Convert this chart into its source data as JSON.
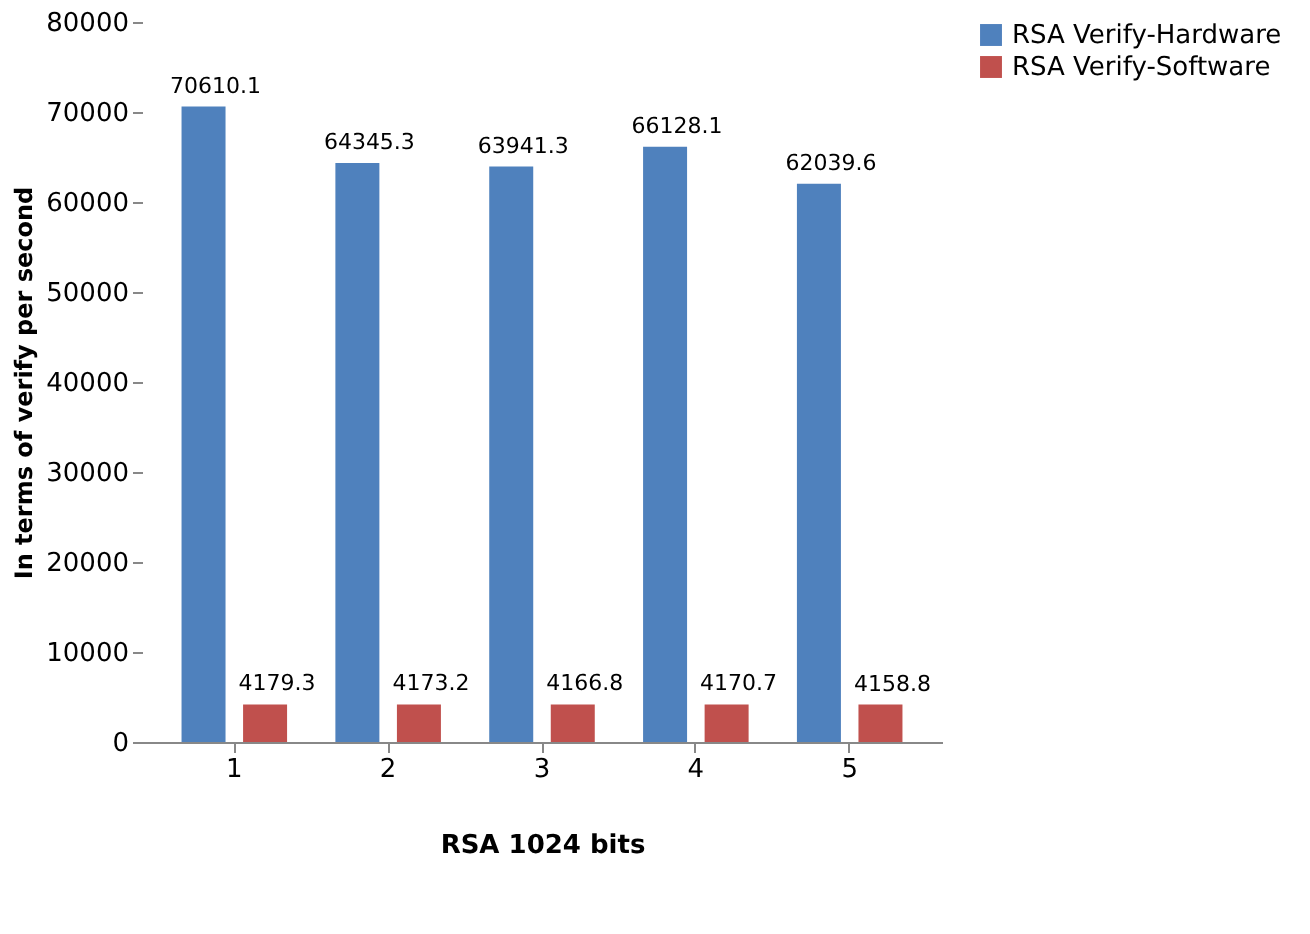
{
  "chart_data": {
    "type": "bar",
    "xlabel": "RSA 1024 bits",
    "ylabel": "In terms of verify per second",
    "categories": [
      "1",
      "2",
      "3",
      "4",
      "5"
    ],
    "series": [
      {
        "name": "RSA Verify-Hardware",
        "color": "#4f81bd",
        "values": [
          70610.1,
          64345.3,
          63941.3,
          66128.1,
          62039.6
        ]
      },
      {
        "name": "RSA Verify-Software",
        "color": "#c0504d",
        "values": [
          4179.3,
          4173.2,
          4166.8,
          4170.7,
          4158.8
        ]
      }
    ],
    "ylim": [
      0,
      80000
    ],
    "yticks": [
      0,
      10000,
      20000,
      30000,
      40000,
      50000,
      60000,
      70000,
      80000
    ],
    "grid": false,
    "legend": "right",
    "data_labels": true
  }
}
